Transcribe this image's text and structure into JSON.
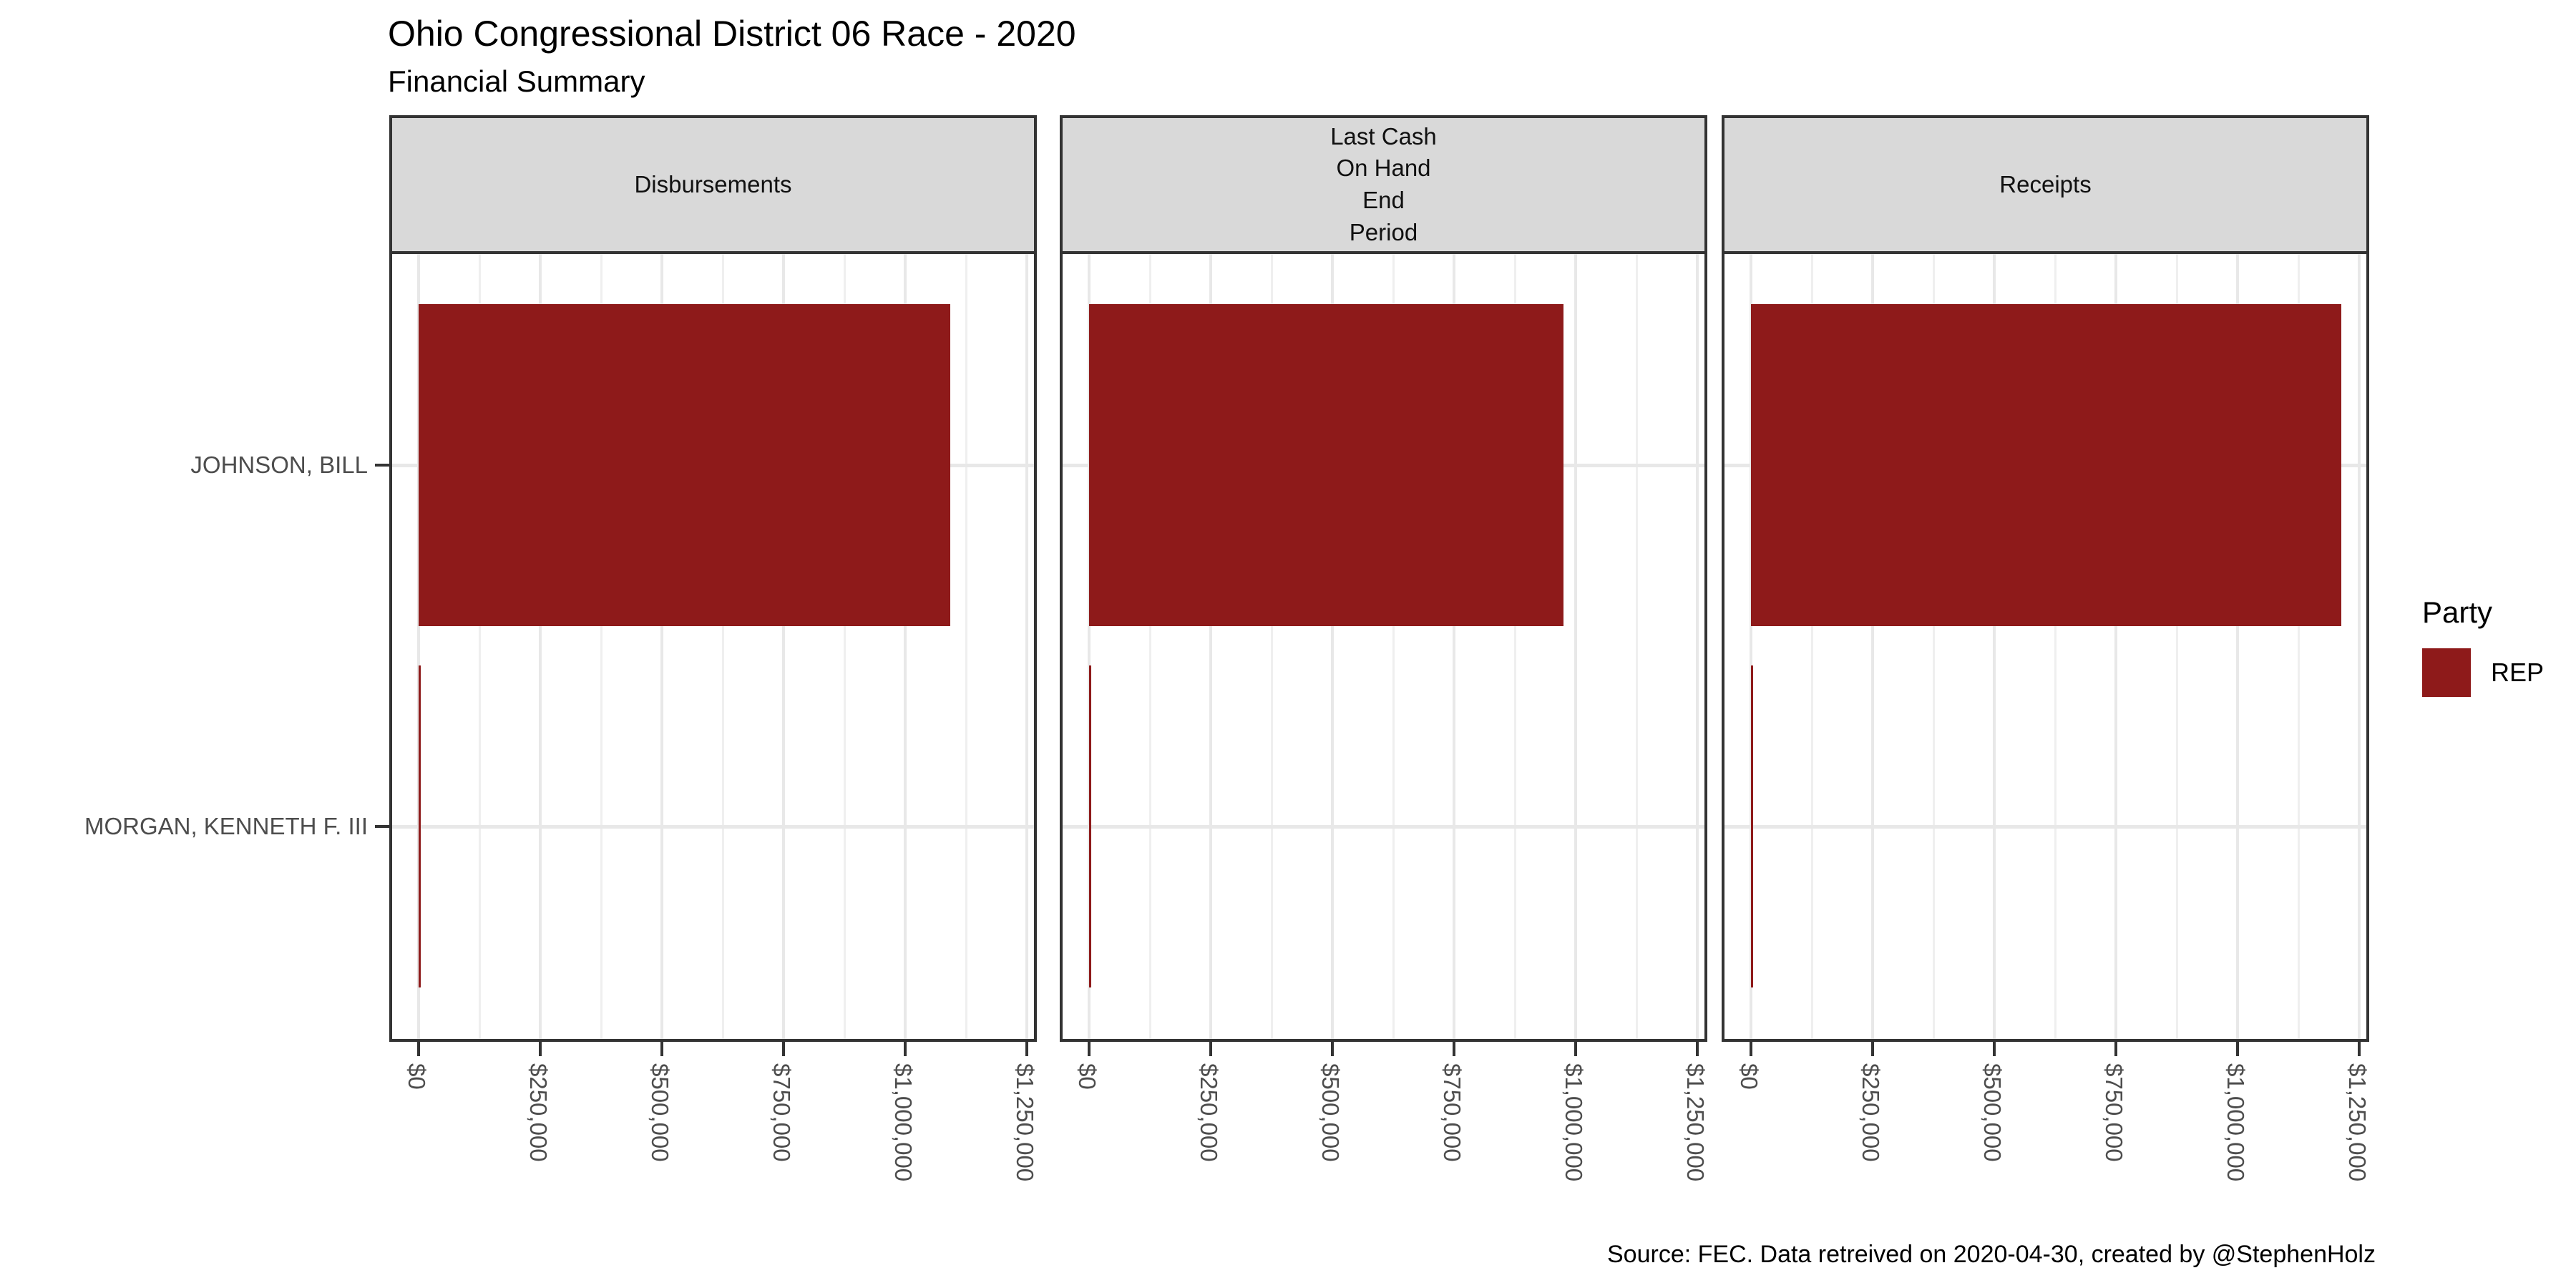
{
  "title": "Ohio Congressional District 06 Race - 2020",
  "subtitle": "Financial Summary",
  "caption": "Source: FEC. Data retreived on 2020-04-30, created by @StephenHolz",
  "legend": {
    "title": "Party",
    "entries": [
      {
        "label": "REP",
        "color": "#8E1A1A"
      }
    ]
  },
  "colors": {
    "bar_rep": "#8E1A1A",
    "strip_fill": "#D9D9D9",
    "panel_border": "#333333",
    "grid_major": "#E8E8E8",
    "grid_minor": "#EFEFEF",
    "axis_text": "#4D4D4D",
    "tick_mark": "#333333"
  },
  "chart_data": {
    "type": "bar",
    "orientation": "horizontal",
    "title": "Ohio Congressional District 06 Race - 2020",
    "subtitle": "Financial Summary",
    "categories": [
      "JOHNSON, BILL",
      "MORGAN, KENNETH F. III"
    ],
    "category_party": [
      "REP",
      "REP"
    ],
    "facets": [
      {
        "label": "Disbursements",
        "values": [
          1092000,
          2000
        ]
      },
      {
        "label": "Last Cash\nOn Hand\nEnd\nPeriod",
        "values": [
          975000,
          2000
        ]
      },
      {
        "label": "Receipts",
        "values": [
          1213000,
          2000
        ]
      }
    ],
    "x_ticks": [
      {
        "value": 0,
        "label": "$0"
      },
      {
        "value": 250000,
        "label": "$250,000"
      },
      {
        "value": 500000,
        "label": "$500,000"
      },
      {
        "value": 750000,
        "label": "$750,000"
      },
      {
        "value": 1000000,
        "label": "$1,000,000"
      },
      {
        "value": 1250000,
        "label": "$1,250,000"
      }
    ],
    "xlim": [
      0,
      1250000
    ],
    "xlabel": "",
    "ylabel": "",
    "grid": "major+minor vertical, major horizontal at category centers",
    "legend_position": "right",
    "legend_title": "Party"
  }
}
